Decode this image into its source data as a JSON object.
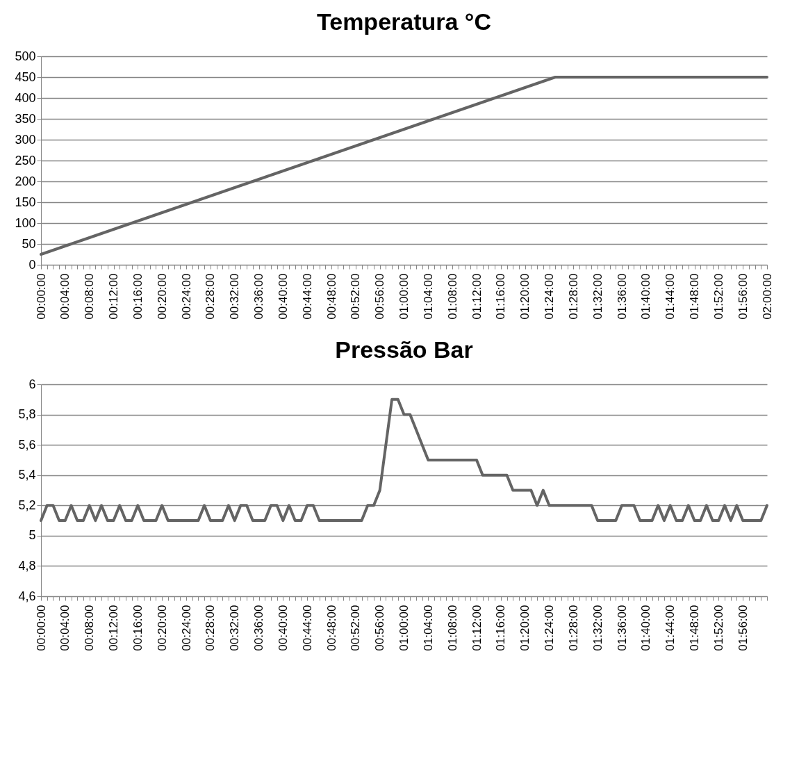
{
  "chart_data": [
    {
      "type": "line",
      "title": "Temperatura °C",
      "categories": [
        "00:00:00",
        null,
        null,
        null,
        "00:04:00",
        null,
        null,
        null,
        "00:08:00",
        null,
        null,
        null,
        "00:12:00",
        null,
        null,
        null,
        "00:16:00",
        null,
        null,
        null,
        "00:20:00",
        null,
        null,
        null,
        "00:24:00",
        null,
        null,
        null,
        "00:28:00",
        null,
        null,
        null,
        "00:32:00",
        null,
        null,
        null,
        "00:36:00",
        null,
        null,
        null,
        "00:40:00",
        null,
        null,
        null,
        "00:44:00",
        null,
        null,
        null,
        "00:48:00",
        null,
        null,
        null,
        "00:52:00",
        null,
        null,
        null,
        "00:56:00",
        null,
        null,
        null,
        "01:00:00",
        null,
        null,
        null,
        "01:04:00",
        null,
        null,
        null,
        "01:08:00",
        null,
        null,
        null,
        "01:12:00",
        null,
        null,
        null,
        "01:16:00",
        null,
        null,
        null,
        "01:20:00",
        null,
        null,
        null,
        "01:24:00",
        null,
        null,
        null,
        "01:28:00",
        null,
        null,
        null,
        "01:32:00",
        null,
        null,
        null,
        "01:36:00",
        null,
        null,
        null,
        "01:40:00",
        null,
        null,
        null,
        "01:44:00",
        null,
        null,
        null,
        "01:48:00",
        null,
        null,
        null,
        "01:52:00",
        null,
        null,
        null,
        "01:56:00",
        null,
        null,
        null,
        "02:00:00"
      ],
      "series": [
        {
          "color": "#646464",
          "values": [
            25,
            30,
            35,
            40,
            45,
            50,
            55,
            60,
            65,
            70,
            75,
            80,
            85,
            90,
            95,
            100,
            105,
            110,
            115,
            120,
            125,
            130,
            135,
            140,
            145,
            150,
            155,
            160,
            165,
            170,
            175,
            180,
            185,
            190,
            195,
            200,
            205,
            210,
            215,
            220,
            225,
            230,
            235,
            240,
            245,
            250,
            255,
            260,
            265,
            270,
            275,
            280,
            285,
            290,
            295,
            300,
            305,
            310,
            315,
            320,
            325,
            330,
            335,
            340,
            345,
            350,
            355,
            360,
            365,
            370,
            375,
            380,
            385,
            390,
            395,
            400,
            405,
            410,
            415,
            420,
            425,
            430,
            435,
            440,
            445,
            450,
            450,
            450,
            450,
            450,
            450,
            450,
            450,
            450,
            450,
            450,
            450,
            450,
            450,
            450,
            450,
            450,
            450,
            450,
            450,
            450,
            450,
            450,
            450,
            450,
            450,
            450,
            450,
            450,
            450,
            450,
            450,
            450,
            450,
            450,
            450
          ]
        }
      ],
      "ylim": [
        0,
        500
      ],
      "yticks": [
        0,
        50,
        100,
        150,
        200,
        250,
        300,
        350,
        400,
        450,
        500
      ],
      "grid": "y",
      "line_style": "solid"
    },
    {
      "type": "line",
      "title": "Pressão Bar",
      "categories": [
        "00:00:00",
        null,
        null,
        null,
        "00:04:00",
        null,
        null,
        null,
        "00:08:00",
        null,
        null,
        null,
        "00:12:00",
        null,
        null,
        null,
        "00:16:00",
        null,
        null,
        null,
        "00:20:00",
        null,
        null,
        null,
        "00:24:00",
        null,
        null,
        null,
        "00:28:00",
        null,
        null,
        null,
        "00:32:00",
        null,
        null,
        null,
        "00:36:00",
        null,
        null,
        null,
        "00:40:00",
        null,
        null,
        null,
        "00:44:00",
        null,
        null,
        null,
        "00:48:00",
        null,
        null,
        null,
        "00:52:00",
        null,
        null,
        null,
        "00:56:00",
        null,
        null,
        null,
        "01:00:00",
        null,
        null,
        null,
        "01:04:00",
        null,
        null,
        null,
        "01:08:00",
        null,
        null,
        null,
        "01:12:00",
        null,
        null,
        null,
        "01:16:00",
        null,
        null,
        null,
        "01:20:00",
        null,
        null,
        null,
        "01:24:00",
        null,
        null,
        null,
        "01:28:00",
        null,
        null,
        null,
        "01:32:00",
        null,
        null,
        null,
        "01:36:00",
        null,
        null,
        null,
        "01:40:00",
        null,
        null,
        null,
        "01:44:00",
        null,
        null,
        null,
        "01:48:00",
        null,
        null,
        null,
        "01:52:00",
        null,
        null,
        null,
        "01:56:00",
        null,
        null,
        null,
        null
      ],
      "series": [
        {
          "color": "#646464",
          "values": [
            5.1,
            5.2,
            5.2,
            5.1,
            5.1,
            5.2,
            5.1,
            5.1,
            5.2,
            5.1,
            5.2,
            5.1,
            5.1,
            5.2,
            5.1,
            5.1,
            5.2,
            5.1,
            5.1,
            5.1,
            5.2,
            5.1,
            5.1,
            5.1,
            5.1,
            5.1,
            5.1,
            5.2,
            5.1,
            5.1,
            5.1,
            5.2,
            5.1,
            5.2,
            5.2,
            5.1,
            5.1,
            5.1,
            5.2,
            5.2,
            5.1,
            5.2,
            5.1,
            5.1,
            5.2,
            5.2,
            5.1,
            5.1,
            5.1,
            5.1,
            5.1,
            5.1,
            5.1,
            5.1,
            5.2,
            5.2,
            5.3,
            5.6,
            5.9,
            5.9,
            5.8,
            5.8,
            5.7,
            5.6,
            5.5,
            5.5,
            5.5,
            5.5,
            5.5,
            5.5,
            5.5,
            5.5,
            5.5,
            5.4,
            5.4,
            5.4,
            5.4,
            5.4,
            5.3,
            5.3,
            5.3,
            5.3,
            5.2,
            5.3,
            5.2,
            5.2,
            5.2,
            5.2,
            5.2,
            5.2,
            5.2,
            5.2,
            5.1,
            5.1,
            5.1,
            5.1,
            5.2,
            5.2,
            5.2,
            5.1,
            5.1,
            5.1,
            5.2,
            5.1,
            5.2,
            5.1,
            5.1,
            5.2,
            5.1,
            5.1,
            5.2,
            5.1,
            5.1,
            5.2,
            5.1,
            5.2,
            5.1,
            5.1,
            5.1,
            5.1,
            5.2
          ]
        }
      ],
      "ylim": [
        4.6,
        6
      ],
      "yticks": [
        {
          "value": 4.6,
          "label": "4,6"
        },
        {
          "value": 4.8,
          "label": "4,8"
        },
        {
          "value": 5,
          "label": "5"
        },
        {
          "value": 5.2,
          "label": "5,2"
        },
        {
          "value": 5.4,
          "label": "5,4"
        },
        {
          "value": 5.6,
          "label": "5,6"
        },
        {
          "value": 5.8,
          "label": "5,8"
        },
        {
          "value": 6,
          "label": "6"
        }
      ],
      "grid": "y",
      "line_style": "solid"
    }
  ]
}
